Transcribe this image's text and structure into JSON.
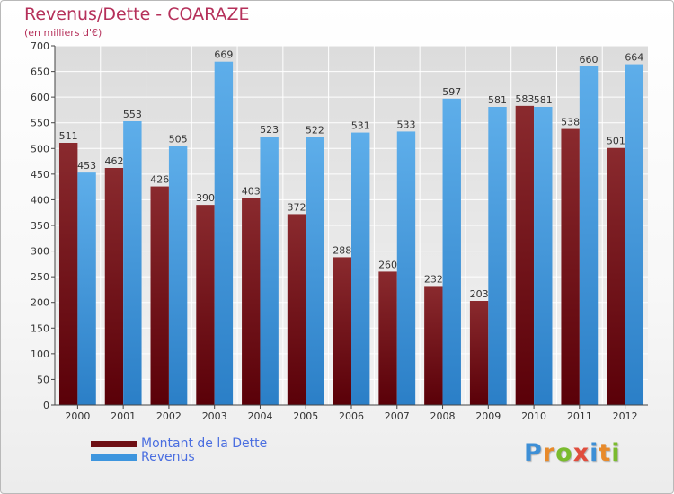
{
  "header": {
    "title": "Revenus/Dette - COARAZE",
    "subtitle": "(en milliers d'€)"
  },
  "logo": {
    "text": "Proxiti",
    "letter_colors": [
      "#3d8fd6",
      "#e88a2a",
      "#7abb2e",
      "#e04d3d",
      "#3d8fd6",
      "#e88a2a",
      "#7abb2e"
    ]
  },
  "chart_data": {
    "type": "bar",
    "categories": [
      "2000",
      "2001",
      "2002",
      "2003",
      "2004",
      "2005",
      "2006",
      "2007",
      "2008",
      "2009",
      "2010",
      "2011",
      "2012"
    ],
    "series": [
      {
        "name": "Montant de la Dette",
        "color": "#6e0f14",
        "values": [
          511,
          462,
          426,
          390,
          403,
          372,
          288,
          260,
          232,
          203,
          583,
          538,
          501
        ]
      },
      {
        "name": "Revenus",
        "color": "#3d95de",
        "values": [
          453,
          553,
          505,
          669,
          523,
          522,
          531,
          533,
          597,
          581,
          581,
          660,
          664
        ]
      }
    ],
    "ylim": [
      0,
      700
    ],
    "yticks": [
      0,
      50,
      100,
      150,
      200,
      250,
      300,
      350,
      400,
      450,
      500,
      550,
      600,
      650,
      700
    ],
    "grid": true,
    "legend_position": "bottom-left"
  }
}
